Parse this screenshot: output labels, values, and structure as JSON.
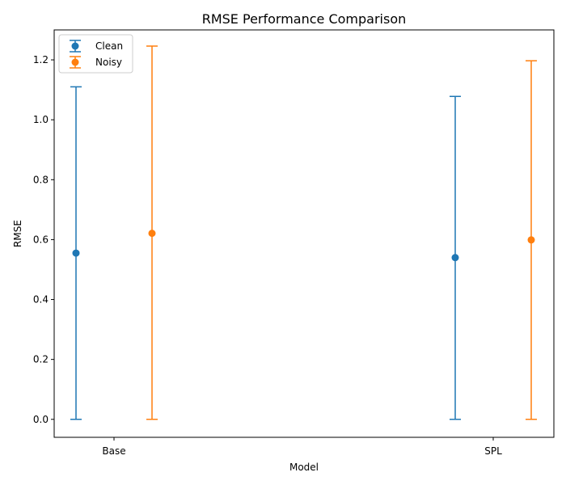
{
  "chart_data": {
    "type": "errorbar",
    "title": "RMSE Performance Comparison",
    "xlabel": "Model",
    "ylabel": "RMSE",
    "categories": [
      "Base",
      "SPL"
    ],
    "ylim": [
      -0.06,
      1.3
    ],
    "yticks": [
      0.0,
      0.2,
      0.4,
      0.6,
      0.8,
      1.0,
      1.2
    ],
    "grid": false,
    "legend_position": "upper-left",
    "series": [
      {
        "name": "Clean",
        "color": "#1f77b4",
        "values": [
          0.555,
          0.54
        ],
        "lower": [
          0.0,
          0.0
        ],
        "upper": [
          1.11,
          1.078
        ]
      },
      {
        "name": "Noisy",
        "color": "#ff7f0e",
        "values": [
          0.621,
          0.599
        ],
        "lower": [
          0.0,
          0.0
        ],
        "upper": [
          1.246,
          1.197
        ]
      }
    ]
  }
}
